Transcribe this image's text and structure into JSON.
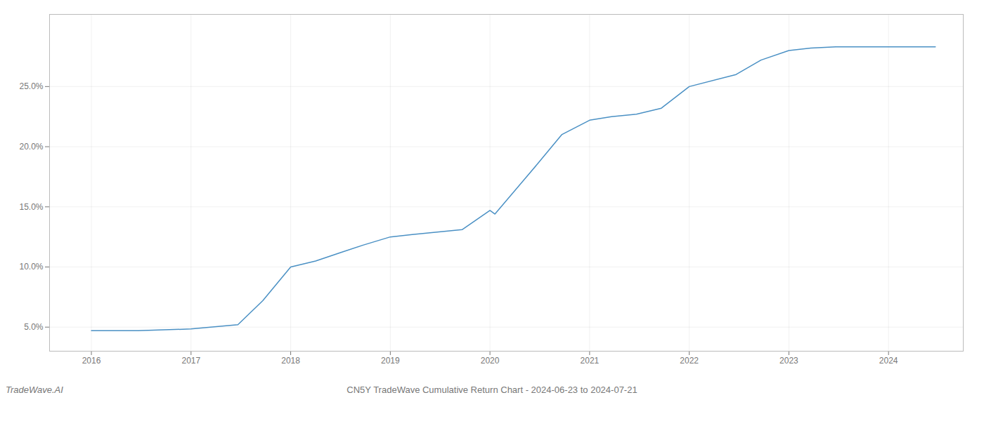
{
  "chart_data": {
    "type": "line",
    "title": "CN5Y TradeWave Cumulative Return Chart - 2024-06-23 to 2024-07-21",
    "annotations": [
      "TradeWave.AI"
    ],
    "x": [
      2016.0,
      2016.47,
      2017.0,
      2017.47,
      2017.72,
      2018.0,
      2018.25,
      2018.5,
      2018.72,
      2019.0,
      2019.22,
      2019.47,
      2019.72,
      2020.0,
      2020.05,
      2020.47,
      2020.72,
      2021.0,
      2021.22,
      2021.47,
      2021.72,
      2022.0,
      2022.47,
      2022.72,
      2023.0,
      2023.22,
      2023.47,
      2023.72,
      2024.0,
      2024.47
    ],
    "values": [
      4.7,
      4.7,
      4.85,
      5.2,
      7.2,
      10.0,
      10.5,
      11.2,
      11.8,
      12.5,
      12.7,
      12.9,
      13.1,
      14.7,
      14.4,
      18.5,
      21.0,
      22.2,
      22.5,
      22.7,
      23.2,
      25.0,
      26.0,
      27.2,
      28.0,
      28.2,
      28.3,
      28.3,
      28.3,
      28.3
    ],
    "color": "#4a90c4",
    "xlim": [
      2015.58,
      2024.75
    ],
    "ylim": [
      3.0,
      31.0
    ],
    "xticks": [
      2016,
      2017,
      2018,
      2019,
      2020,
      2021,
      2022,
      2023,
      2024
    ],
    "yticks": [
      {
        "value": 5.0,
        "label": "5.0%"
      },
      {
        "value": 10.0,
        "label": "10.0%"
      },
      {
        "value": 15.0,
        "label": "15.0%"
      },
      {
        "value": 20.0,
        "label": "20.0%"
      },
      {
        "value": 25.0,
        "label": "25.0%"
      }
    ],
    "grid": true
  }
}
